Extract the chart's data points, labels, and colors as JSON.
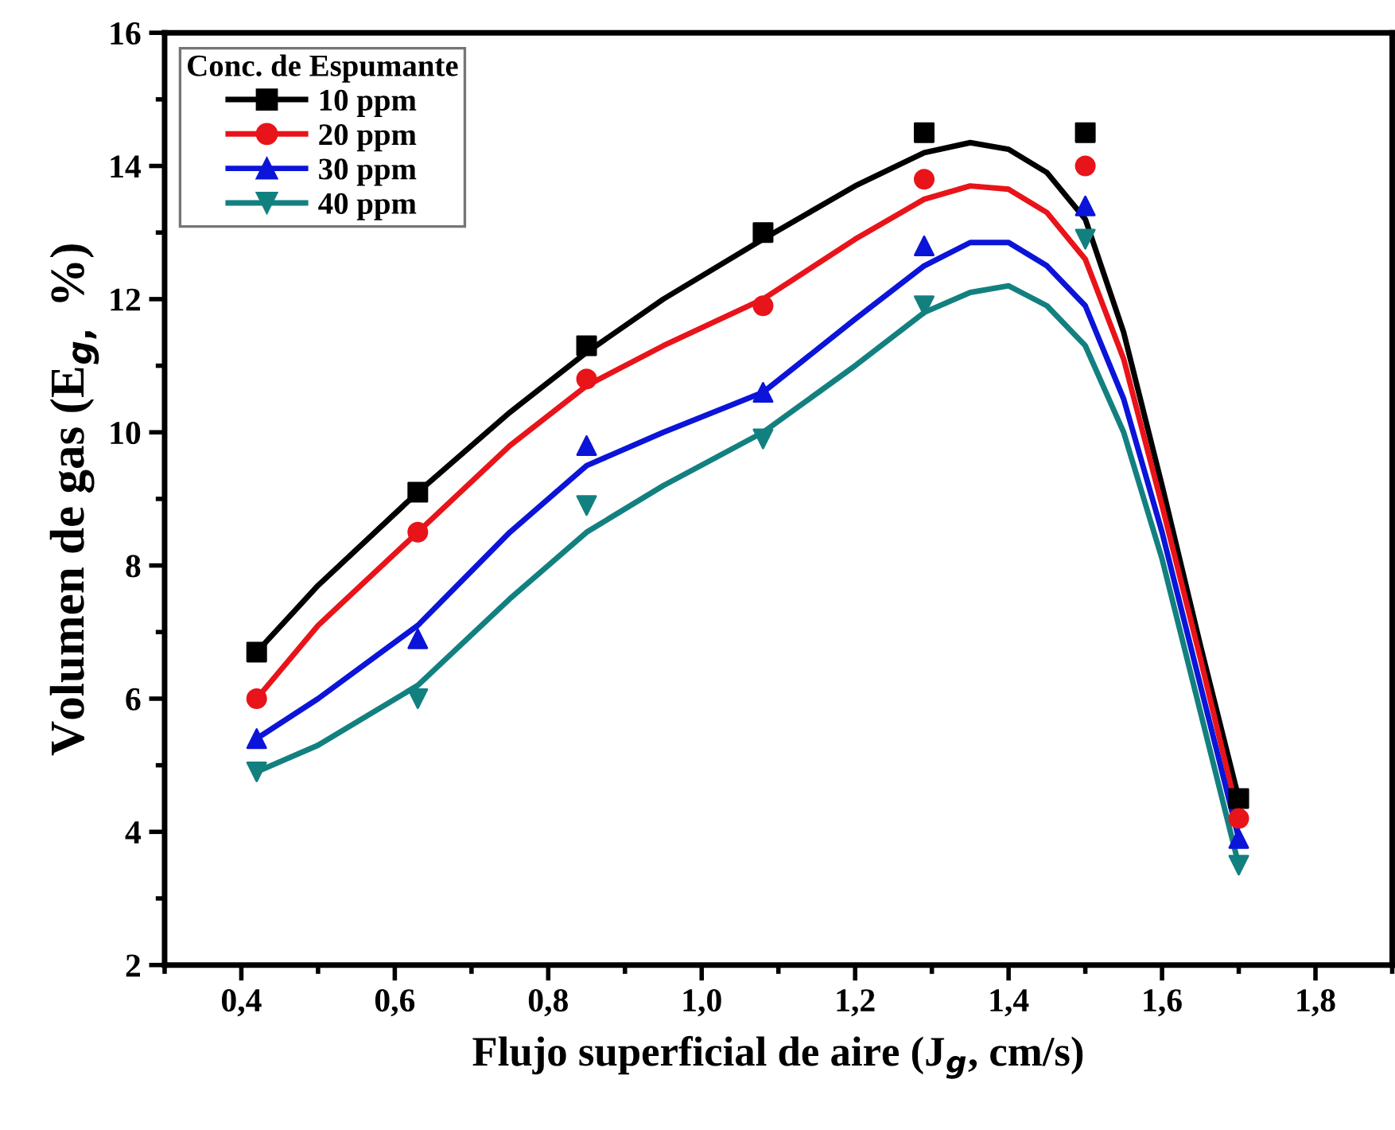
{
  "chart_data": {
    "type": "scatter",
    "xlabel": "Flujo superficial de aire (J$_{g}$, cm/s)",
    "ylabel": "Volumen de gas (E$_{g,}$ %)",
    "legend_title": "Conc. de Espumante",
    "legend": "top left",
    "grid": false,
    "xlim": [
      0.3,
      1.9
    ],
    "xticks": [
      {
        "value": 0.4,
        "label": "0,4"
      },
      {
        "value": 0.6,
        "label": "0,6"
      },
      {
        "value": 0.8,
        "label": "0,8"
      },
      {
        "value": 1.0,
        "label": "1,0"
      },
      {
        "value": 1.2,
        "label": "1,2"
      },
      {
        "value": 1.4,
        "label": "1,4"
      },
      {
        "value": 1.6,
        "label": "1,6"
      },
      {
        "value": 1.8,
        "label": "1,8"
      }
    ],
    "ylim": [
      2,
      16
    ],
    "yticks": [
      2,
      4,
      6,
      8,
      10,
      12,
      14,
      16
    ],
    "x": [
      0.42,
      0.63,
      0.85,
      1.08,
      1.29,
      1.5,
      1.7
    ],
    "series": [
      {
        "name": "10 ppm",
        "color": "#000000",
        "marker": "square",
        "values": [
          6.7,
          9.1,
          11.3,
          13.0,
          14.5,
          14.5,
          4.5
        ]
      },
      {
        "name": "20 ppm",
        "color": "#e8141a",
        "marker": "circle",
        "values": [
          6.0,
          8.5,
          10.8,
          11.9,
          13.8,
          14.0,
          4.2
        ]
      },
      {
        "name": "30 ppm",
        "color": "#0b14d8",
        "marker": "triangle",
        "values": [
          5.4,
          6.9,
          9.8,
          10.6,
          12.8,
          13.4,
          3.9
        ]
      },
      {
        "name": "40 ppm",
        "color": "#138080",
        "marker": "triangle_down",
        "values": [
          4.9,
          6.0,
          8.9,
          9.9,
          11.9,
          12.9,
          3.5
        ]
      },
      {
        "type": "line",
        "color": "#000000",
        "x": [
          0.42,
          0.5,
          0.63,
          0.75,
          0.85,
          0.95,
          1.08,
          1.2,
          1.29,
          1.35,
          1.4,
          1.45,
          1.5,
          1.55,
          1.6,
          1.65,
          1.7
        ],
        "values": [
          6.7,
          7.7,
          9.1,
          10.3,
          11.2,
          12.0,
          12.9,
          13.7,
          14.2,
          14.35,
          14.25,
          13.9,
          13.2,
          11.5,
          9.2,
          6.8,
          4.5
        ]
      },
      {
        "type": "line",
        "color": "#e8141a",
        "x": [
          0.42,
          0.5,
          0.63,
          0.75,
          0.85,
          0.95,
          1.08,
          1.2,
          1.29,
          1.35,
          1.4,
          1.45,
          1.5,
          1.55,
          1.6,
          1.65,
          1.7
        ],
        "values": [
          6.0,
          7.1,
          8.5,
          9.8,
          10.7,
          11.3,
          12.0,
          12.9,
          13.5,
          13.7,
          13.65,
          13.3,
          12.6,
          11.1,
          8.9,
          6.6,
          4.2
        ]
      },
      {
        "type": "line",
        "color": "#0b14d8",
        "x": [
          0.42,
          0.5,
          0.63,
          0.75,
          0.85,
          0.95,
          1.08,
          1.2,
          1.29,
          1.35,
          1.4,
          1.45,
          1.5,
          1.55,
          1.6,
          1.65,
          1.7
        ],
        "values": [
          5.4,
          6.0,
          7.1,
          8.5,
          9.5,
          10.0,
          10.6,
          11.7,
          12.5,
          12.85,
          12.85,
          12.5,
          11.9,
          10.5,
          8.5,
          6.2,
          3.9
        ]
      },
      {
        "type": "line",
        "color": "#138080",
        "x": [
          0.42,
          0.5,
          0.63,
          0.75,
          0.85,
          0.95,
          1.08,
          1.2,
          1.29,
          1.35,
          1.4,
          1.45,
          1.5,
          1.55,
          1.6,
          1.65,
          1.7
        ],
        "values": [
          4.9,
          5.3,
          6.2,
          7.5,
          8.5,
          9.2,
          10.0,
          11.0,
          11.8,
          12.1,
          12.2,
          11.9,
          11.3,
          10.0,
          8.1,
          5.8,
          3.5
        ]
      }
    ]
  }
}
